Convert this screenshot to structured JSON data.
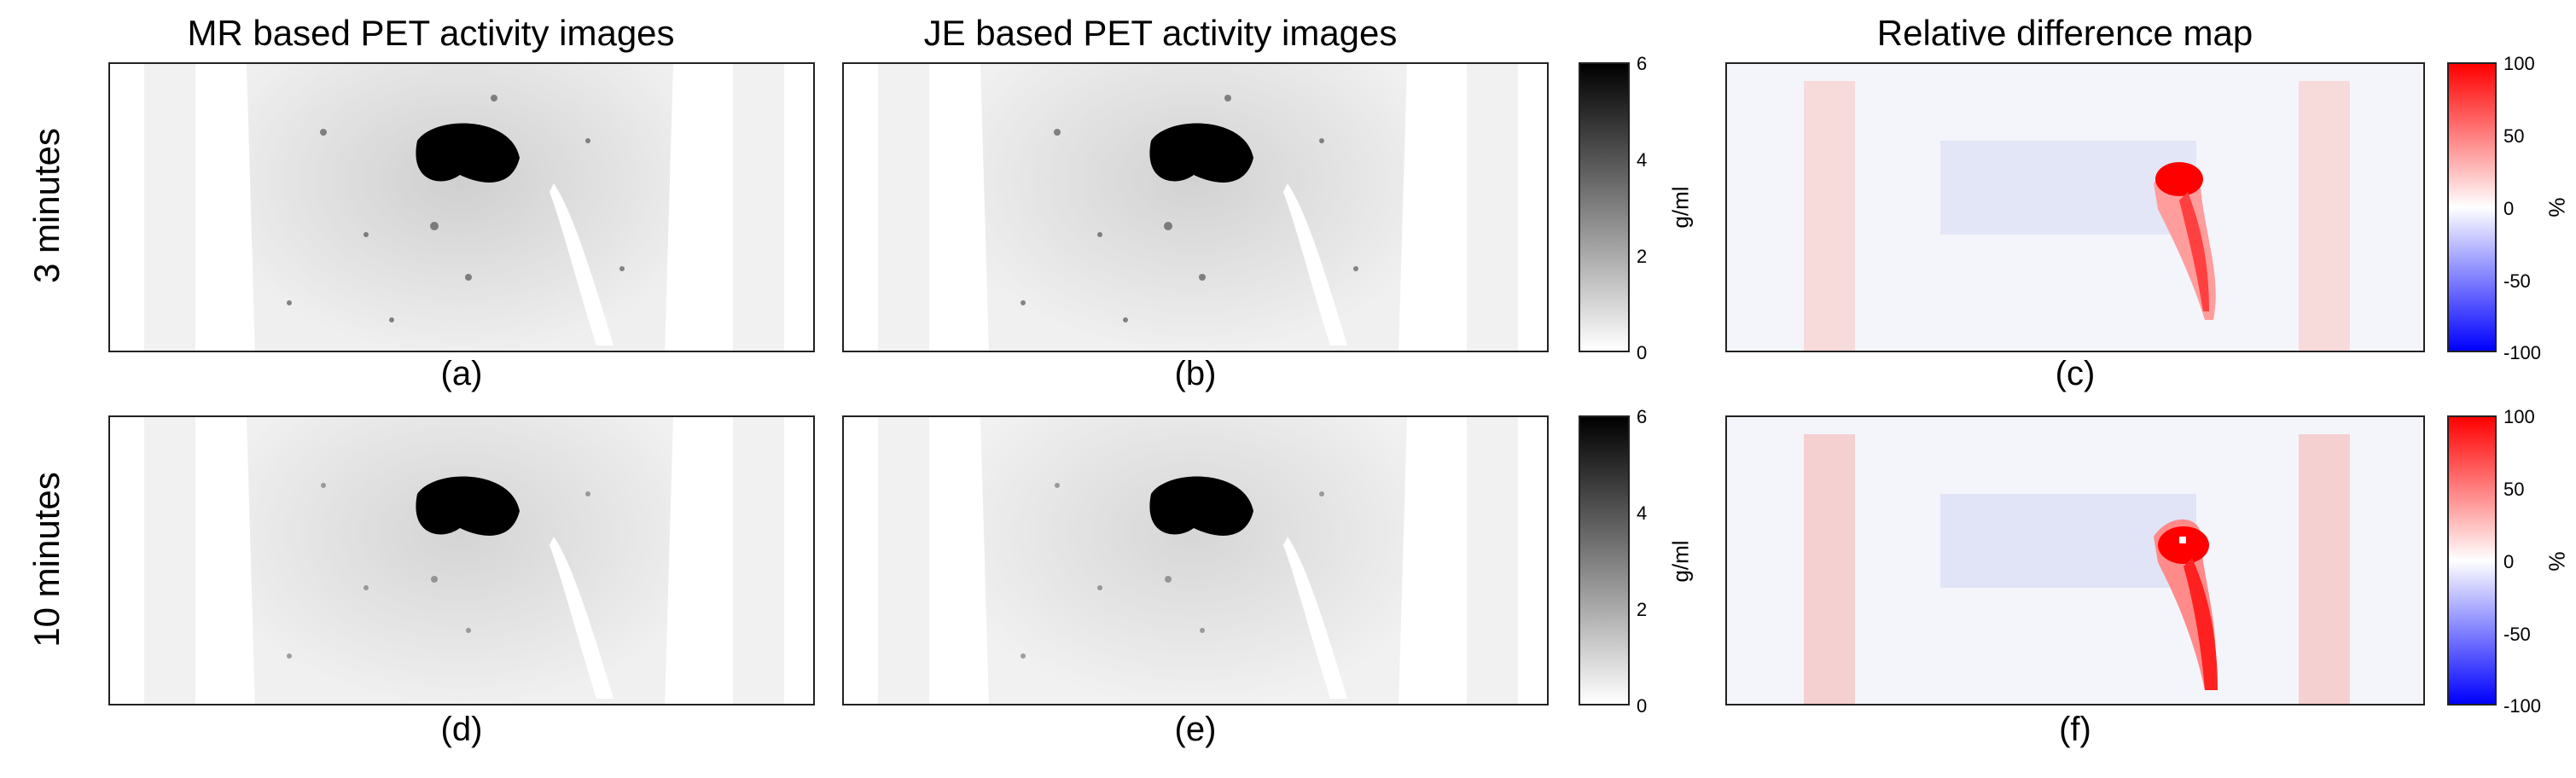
{
  "columns": {
    "mr": "MR based PET activity images",
    "je": "JE based PET activity images",
    "diff": "Relative difference map"
  },
  "rows": {
    "top": "3 minutes",
    "bottom": "10 minutes"
  },
  "panels": [
    "(a)",
    "(b)",
    "(c)",
    "(d)",
    "(e)",
    "(f)"
  ],
  "activity_colorbar": {
    "unit": "g/ml",
    "ticks": [
      "6",
      "4",
      "2",
      "0"
    ],
    "colors": [
      "#000000",
      "#ffffff"
    ]
  },
  "difference_colorbar": {
    "unit": "%",
    "ticks": [
      "100",
      "50",
      "0",
      "-50",
      "-100"
    ],
    "colors": [
      "#ff0000",
      "#ffffff",
      "#0000ff"
    ]
  }
}
